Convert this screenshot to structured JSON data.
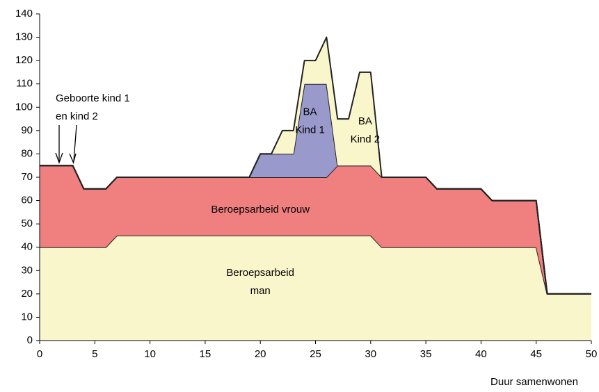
{
  "chart_data": {
    "type": "stacked-area",
    "x_label": "Duur samenwonen",
    "x": [
      0,
      3,
      4,
      6,
      7,
      19,
      20,
      21,
      22,
      23,
      24,
      25,
      26,
      27,
      28,
      29,
      30,
      31,
      35,
      36,
      40,
      41,
      45,
      46,
      50
    ],
    "series": [
      {
        "name": [
          "Beroepsarbeid",
          "man"
        ],
        "color": "#faf6cc",
        "values": [
          40,
          40,
          40,
          40,
          45,
          45,
          45,
          45,
          45,
          45,
          45,
          45,
          45,
          45,
          45,
          45,
          45,
          40,
          40,
          40,
          40,
          40,
          40,
          20,
          20
        ]
      },
      {
        "name": [
          "Beroepsarbeid vrouw"
        ],
        "color": "#f08080",
        "values": [
          35,
          35,
          25,
          25,
          25,
          25,
          25,
          25,
          25,
          25,
          25,
          25,
          25,
          30,
          30,
          30,
          30,
          30,
          30,
          25,
          25,
          20,
          20,
          0,
          0
        ]
      },
      {
        "name": [
          "BA",
          "Kind 1"
        ],
        "color": "#9999cc",
        "values": [
          0,
          0,
          0,
          0,
          0,
          0,
          10,
          10,
          10,
          10,
          40,
          40,
          40,
          0,
          0,
          0,
          0,
          0,
          0,
          0,
          0,
          0,
          0,
          0,
          0
        ]
      },
      {
        "name": [
          "BA",
          "Kind 2"
        ],
        "color": "#faf6cc",
        "values": [
          0,
          0,
          0,
          0,
          0,
          0,
          0,
          0,
          10,
          10,
          10,
          10,
          20,
          20,
          20,
          40,
          40,
          0,
          0,
          0,
          0,
          0,
          0,
          0,
          0
        ]
      }
    ],
    "annotations": [
      {
        "text": [
          "Geboorte kind 1",
          "en kind 2"
        ]
      }
    ],
    "xlim": [
      0,
      50
    ],
    "xticks": [
      0,
      5,
      10,
      15,
      20,
      25,
      30,
      35,
      40,
      45,
      50
    ],
    "ylim": [
      0,
      140
    ],
    "yticks": [
      0,
      10,
      20,
      30,
      40,
      50,
      60,
      70,
      80,
      90,
      100,
      110,
      120,
      130,
      140
    ],
    "grid": false
  }
}
